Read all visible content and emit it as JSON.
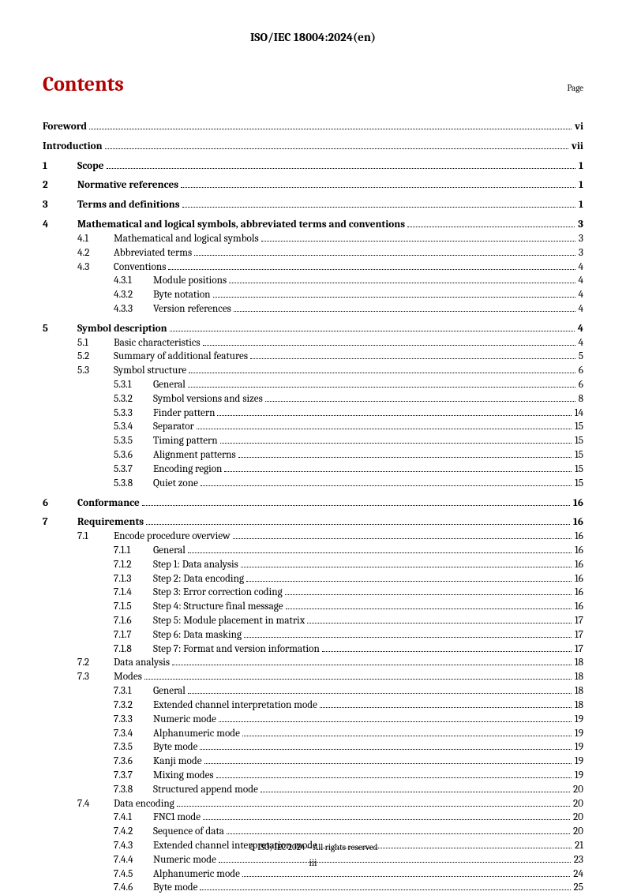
{
  "doc_id": "ISO/IEC 18004:2024(en)",
  "heading": "Contents",
  "page_label": "Page",
  "footer_text": "© ISO/IEC 2024 – All rights reserved",
  "footer_pagenum": "iii",
  "colors": {
    "heading": "#b30000",
    "text": "#000000",
    "bg": "#ffffff"
  },
  "font_sizes": {
    "header": 15,
    "heading": 26,
    "body": 13.2,
    "page_label": 11,
    "footer": 11
  },
  "toc": [
    {
      "level": 0,
      "num": "",
      "title": "Foreword",
      "page": "vi",
      "bold": true,
      "spaced": false
    },
    {
      "level": 0,
      "num": "",
      "title": "Introduction",
      "page": "vii",
      "bold": true,
      "spaced": true
    },
    {
      "level": 0,
      "num": "1",
      "title": "Scope",
      "page": "1",
      "bold": true,
      "spaced": true
    },
    {
      "level": 0,
      "num": "2",
      "title": "Normative references",
      "page": "1",
      "bold": true,
      "spaced": true
    },
    {
      "level": 0,
      "num": "3",
      "title": "Terms and definitions",
      "page": "1",
      "bold": true,
      "spaced": true
    },
    {
      "level": 0,
      "num": "4",
      "title": "Mathematical and logical symbols, abbreviated terms and conventions",
      "page": "3",
      "bold": true,
      "spaced": true
    },
    {
      "level": 1,
      "num": "4.1",
      "title": "Mathematical and logical symbols",
      "page": "3"
    },
    {
      "level": 1,
      "num": "4.2",
      "title": "Abbreviated terms",
      "page": "3"
    },
    {
      "level": 1,
      "num": "4.3",
      "title": "Conventions",
      "page": "4"
    },
    {
      "level": 2,
      "num": "4.3.1",
      "title": "Module positions",
      "page": "4"
    },
    {
      "level": 2,
      "num": "4.3.2",
      "title": "Byte notation",
      "page": "4"
    },
    {
      "level": 2,
      "num": "4.3.3",
      "title": "Version references",
      "page": "4"
    },
    {
      "level": 0,
      "num": "5",
      "title": "Symbol description",
      "page": "4",
      "bold": true,
      "spaced": true
    },
    {
      "level": 1,
      "num": "5.1",
      "title": "Basic characteristics",
      "page": "4"
    },
    {
      "level": 1,
      "num": "5.2",
      "title": "Summary of additional features",
      "page": "5"
    },
    {
      "level": 1,
      "num": "5.3",
      "title": "Symbol structure",
      "page": "6"
    },
    {
      "level": 2,
      "num": "5.3.1",
      "title": "General",
      "page": "6"
    },
    {
      "level": 2,
      "num": "5.3.2",
      "title": "Symbol versions and sizes",
      "page": "8"
    },
    {
      "level": 2,
      "num": "5.3.3",
      "title": "Finder pattern",
      "page": "14"
    },
    {
      "level": 2,
      "num": "5.3.4",
      "title": "Separator",
      "page": "15"
    },
    {
      "level": 2,
      "num": "5.3.5",
      "title": "Timing pattern",
      "page": "15"
    },
    {
      "level": 2,
      "num": "5.3.6",
      "title": "Alignment patterns",
      "page": "15"
    },
    {
      "level": 2,
      "num": "5.3.7",
      "title": "Encoding region",
      "page": "15"
    },
    {
      "level": 2,
      "num": "5.3.8",
      "title": "Quiet zone",
      "page": "15"
    },
    {
      "level": 0,
      "num": "6",
      "title": "Conformance",
      "page": "16",
      "bold": true,
      "spaced": true
    },
    {
      "level": 0,
      "num": "7",
      "title": "Requirements",
      "page": "16",
      "bold": true,
      "spaced": true
    },
    {
      "level": 1,
      "num": "7.1",
      "title": "Encode procedure overview",
      "page": "16"
    },
    {
      "level": 2,
      "num": "7.1.1",
      "title": "General",
      "page": "16"
    },
    {
      "level": 2,
      "num": "7.1.2",
      "title": "Step 1: Data analysis",
      "page": "16"
    },
    {
      "level": 2,
      "num": "7.1.3",
      "title": "Step 2: Data encoding",
      "page": "16"
    },
    {
      "level": 2,
      "num": "7.1.4",
      "title": "Step 3: Error correction coding",
      "page": "16"
    },
    {
      "level": 2,
      "num": "7.1.5",
      "title": "Step 4: Structure final message",
      "page": "16"
    },
    {
      "level": 2,
      "num": "7.1.6",
      "title": "Step 5: Module placement in matrix",
      "page": "17"
    },
    {
      "level": 2,
      "num": "7.1.7",
      "title": "Step 6: Data masking",
      "page": "17"
    },
    {
      "level": 2,
      "num": "7.1.8",
      "title": "Step 7: Format and version information",
      "page": "17"
    },
    {
      "level": 1,
      "num": "7.2",
      "title": "Data analysis",
      "page": "18"
    },
    {
      "level": 1,
      "num": "7.3",
      "title": "Modes",
      "page": "18"
    },
    {
      "level": 2,
      "num": "7.3.1",
      "title": "General",
      "page": "18"
    },
    {
      "level": 2,
      "num": "7.3.2",
      "title": "Extended channel interpretation mode",
      "page": "18"
    },
    {
      "level": 2,
      "num": "7.3.3",
      "title": "Numeric mode",
      "page": "19"
    },
    {
      "level": 2,
      "num": "7.3.4",
      "title": "Alphanumeric mode",
      "page": "19"
    },
    {
      "level": 2,
      "num": "7.3.5",
      "title": "Byte mode",
      "page": "19"
    },
    {
      "level": 2,
      "num": "7.3.6",
      "title": "Kanji mode",
      "page": "19"
    },
    {
      "level": 2,
      "num": "7.3.7",
      "title": "Mixing modes",
      "page": "19"
    },
    {
      "level": 2,
      "num": "7.3.8",
      "title": "Structured append mode",
      "page": "20"
    },
    {
      "level": 1,
      "num": "7.4",
      "title": "Data encoding",
      "page": "20"
    },
    {
      "level": 2,
      "num": "7.4.1",
      "title": "FNC1 mode",
      "page": "20"
    },
    {
      "level": 2,
      "num": "7.4.2",
      "title": "Sequence of data",
      "page": "20"
    },
    {
      "level": 2,
      "num": "7.4.3",
      "title": "Extended channel interpretation mode",
      "page": "21"
    },
    {
      "level": 2,
      "num": "7.4.4",
      "title": "Numeric mode",
      "page": "23"
    },
    {
      "level": 2,
      "num": "7.4.5",
      "title": "Alphanumeric mode",
      "page": "24"
    },
    {
      "level": 2,
      "num": "7.4.6",
      "title": "Byte mode",
      "page": "25"
    }
  ]
}
